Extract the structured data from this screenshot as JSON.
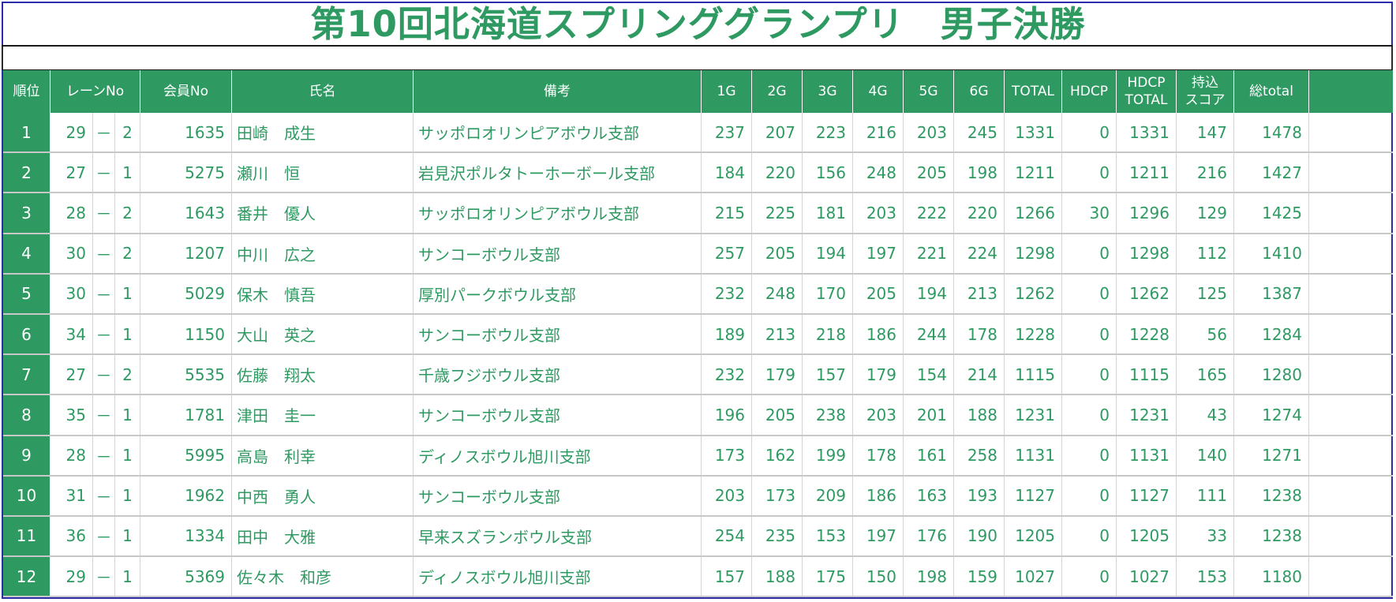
{
  "title": "第10回北海道スプリンググランプリ　男子決勝",
  "colors": {
    "accent": "#2e9a62",
    "border": "#2c2ca8"
  },
  "table": {
    "headers": {
      "rank": "順位",
      "lane": "レーンNo",
      "member": "会員No",
      "name": "氏名",
      "note": "備考",
      "g1": "1G",
      "g2": "2G",
      "g3": "3G",
      "g4": "4G",
      "g5": "5G",
      "g6": "6G",
      "total": "TOTAL",
      "hdcp": "HDCP",
      "hdcp_total_1": "HDCP",
      "hdcp_total_2": "TOTAL",
      "carry_1": "持込",
      "carry_2": "スコア",
      "sum": "総total"
    },
    "rows": [
      {
        "rank": "1",
        "lane_a": "29",
        "dash": "－",
        "lane_b": "2",
        "member": "1635",
        "name": "田崎　成生",
        "note": "サッポロオリンピアボウル支部",
        "g1": "237",
        "g2": "207",
        "g3": "223",
        "g4": "216",
        "g5": "203",
        "g6": "245",
        "total": "1331",
        "hdcp": "0",
        "hdcp_total": "1331",
        "carry": "147",
        "sum": "1478"
      },
      {
        "rank": "2",
        "lane_a": "27",
        "dash": "－",
        "lane_b": "1",
        "member": "5275",
        "name": "瀬川　恒",
        "note": "岩見沢ポルタトーホーボール支部",
        "g1": "184",
        "g2": "220",
        "g3": "156",
        "g4": "248",
        "g5": "205",
        "g6": "198",
        "total": "1211",
        "hdcp": "0",
        "hdcp_total": "1211",
        "carry": "216",
        "sum": "1427"
      },
      {
        "rank": "3",
        "lane_a": "28",
        "dash": "－",
        "lane_b": "2",
        "member": "1643",
        "name": "番井　優人",
        "note": "サッポロオリンピアボウル支部",
        "g1": "215",
        "g2": "225",
        "g3": "181",
        "g4": "203",
        "g5": "222",
        "g6": "220",
        "total": "1266",
        "hdcp": "30",
        "hdcp_total": "1296",
        "carry": "129",
        "sum": "1425"
      },
      {
        "rank": "4",
        "lane_a": "30",
        "dash": "－",
        "lane_b": "2",
        "member": "1207",
        "name": "中川　広之",
        "note": "サンコーボウル支部",
        "g1": "257",
        "g2": "205",
        "g3": "194",
        "g4": "197",
        "g5": "221",
        "g6": "224",
        "total": "1298",
        "hdcp": "0",
        "hdcp_total": "1298",
        "carry": "112",
        "sum": "1410"
      },
      {
        "rank": "5",
        "lane_a": "30",
        "dash": "－",
        "lane_b": "1",
        "member": "5029",
        "name": "保木　慎吾",
        "note": "厚別パークボウル支部",
        "g1": "232",
        "g2": "248",
        "g3": "170",
        "g4": "205",
        "g5": "194",
        "g6": "213",
        "total": "1262",
        "hdcp": "0",
        "hdcp_total": "1262",
        "carry": "125",
        "sum": "1387"
      },
      {
        "rank": "6",
        "lane_a": "34",
        "dash": "－",
        "lane_b": "1",
        "member": "1150",
        "name": "大山　英之",
        "note": "サンコーボウル支部",
        "g1": "189",
        "g2": "213",
        "g3": "218",
        "g4": "186",
        "g5": "244",
        "g6": "178",
        "total": "1228",
        "hdcp": "0",
        "hdcp_total": "1228",
        "carry": "56",
        "sum": "1284"
      },
      {
        "rank": "7",
        "lane_a": "27",
        "dash": "－",
        "lane_b": "2",
        "member": "5535",
        "name": "佐藤　翔太",
        "note": "千歳フジボウル支部",
        "g1": "232",
        "g2": "179",
        "g3": "157",
        "g4": "179",
        "g5": "154",
        "g6": "214",
        "total": "1115",
        "hdcp": "0",
        "hdcp_total": "1115",
        "carry": "165",
        "sum": "1280"
      },
      {
        "rank": "8",
        "lane_a": "35",
        "dash": "－",
        "lane_b": "1",
        "member": "1781",
        "name": "津田　圭一",
        "note": "サンコーボウル支部",
        "g1": "196",
        "g2": "205",
        "g3": "238",
        "g4": "203",
        "g5": "201",
        "g6": "188",
        "total": "1231",
        "hdcp": "0",
        "hdcp_total": "1231",
        "carry": "43",
        "sum": "1274"
      },
      {
        "rank": "9",
        "lane_a": "28",
        "dash": "－",
        "lane_b": "1",
        "member": "5995",
        "name": "高島　利幸",
        "note": "ディノスボウル旭川支部",
        "g1": "173",
        "g2": "162",
        "g3": "199",
        "g4": "178",
        "g5": "161",
        "g6": "258",
        "total": "1131",
        "hdcp": "0",
        "hdcp_total": "1131",
        "carry": "140",
        "sum": "1271"
      },
      {
        "rank": "10",
        "lane_a": "31",
        "dash": "－",
        "lane_b": "1",
        "member": "1962",
        "name": "中西　勇人",
        "note": "サンコーボウル支部",
        "g1": "203",
        "g2": "173",
        "g3": "209",
        "g4": "186",
        "g5": "163",
        "g6": "193",
        "total": "1127",
        "hdcp": "0",
        "hdcp_total": "1127",
        "carry": "111",
        "sum": "1238"
      },
      {
        "rank": "11",
        "lane_a": "36",
        "dash": "－",
        "lane_b": "1",
        "member": "1334",
        "name": "田中　大雅",
        "note": "早来スズランボウル支部",
        "g1": "254",
        "g2": "235",
        "g3": "153",
        "g4": "197",
        "g5": "176",
        "g6": "190",
        "total": "1205",
        "hdcp": "0",
        "hdcp_total": "1205",
        "carry": "33",
        "sum": "1238"
      },
      {
        "rank": "12",
        "lane_a": "29",
        "dash": "－",
        "lane_b": "1",
        "member": "5369",
        "name": "佐々木　和彦",
        "note": "ディノスボウル旭川支部",
        "g1": "157",
        "g2": "188",
        "g3": "175",
        "g4": "150",
        "g5": "198",
        "g6": "159",
        "total": "1027",
        "hdcp": "0",
        "hdcp_total": "1027",
        "carry": "153",
        "sum": "1180"
      }
    ]
  }
}
